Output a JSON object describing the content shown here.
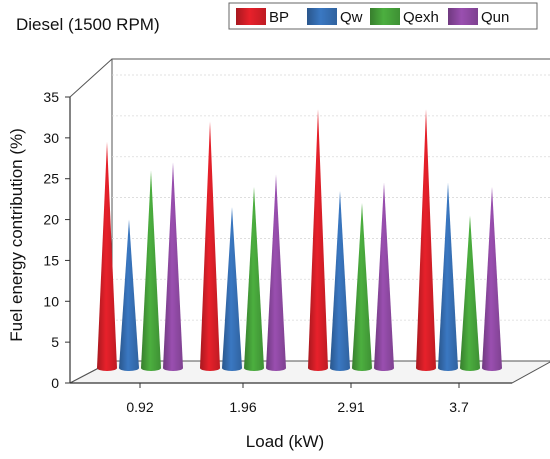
{
  "chart_data": {
    "type": "bar",
    "subtype": "3d-cone",
    "title": "Diesel (1500 RPM)",
    "xlabel": "Load (kW)",
    "ylabel": "Fuel energy contribution (%)",
    "categories": [
      "0.92",
      "1.96",
      "2.91",
      "3.7"
    ],
    "ylim": [
      0,
      35
    ],
    "yticks": [
      0,
      5,
      10,
      15,
      20,
      25,
      30,
      35
    ],
    "legend_position": "top",
    "grid": true,
    "series": [
      {
        "name": "BP",
        "color": "#e8212b",
        "values": [
          30.5,
          33.0,
          34.5,
          34.5
        ]
      },
      {
        "name": "Qw",
        "color": "#3a78c2",
        "values": [
          21.0,
          22.5,
          24.5,
          25.5
        ]
      },
      {
        "name": "Qexh",
        "color": "#4caf3f",
        "values": [
          27.0,
          25.0,
          23.0,
          21.5
        ]
      },
      {
        "name": "Qun",
        "color": "#9a4fb0",
        "values": [
          28.0,
          26.5,
          25.5,
          25.0
        ]
      }
    ]
  }
}
